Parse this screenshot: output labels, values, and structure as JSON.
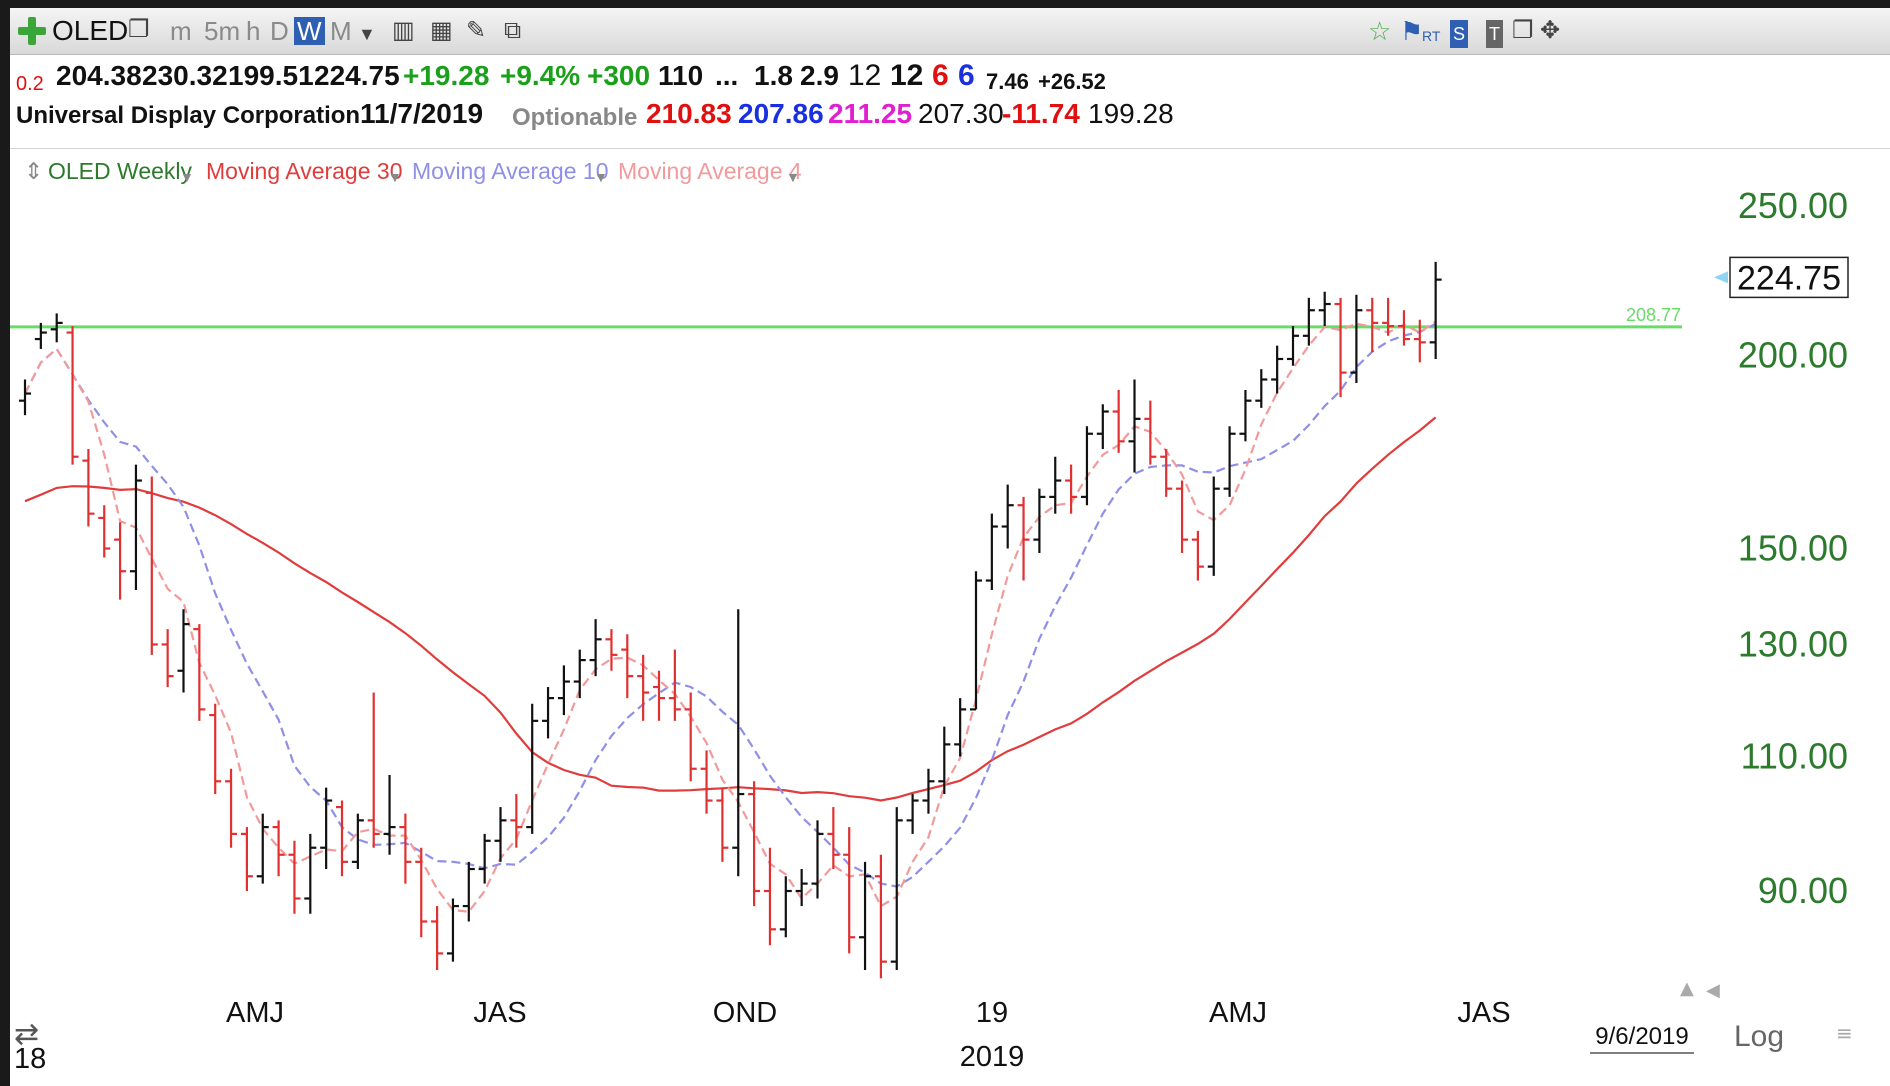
{
  "toolbar": {
    "symbol": "OLED",
    "intervals": [
      "m",
      "5m",
      "h",
      "D",
      "W",
      "M"
    ],
    "selected_interval": "W",
    "rt_label": "RT",
    "s_label": "S",
    "t_label": "T"
  },
  "quote": {
    "change_small": "0.2",
    "open": "204.38",
    "high": "230.32",
    "low": "199.51",
    "close": "224.75",
    "change": "+19.28",
    "change_pct": "+9.4%",
    "volume_change": "+300",
    "v1": "110",
    "ellipsis": "...",
    "v2": "1.8",
    "v3": "2.9",
    "v4": "12",
    "v5": "12",
    "v6": "6",
    "v7": "6",
    "v8": "7.46",
    "v9": "+26.52"
  },
  "info": {
    "company": "Universal Display Corporation",
    "date": "11/7/2019",
    "optionable": "Optionable",
    "ma30_value": "210.83",
    "ma10_value": "207.86",
    "ma4_value": "211.25",
    "value4": "207.30",
    "value5": "-11.74",
    "value6": "199.28"
  },
  "legend": {
    "main": "OLED Weekly",
    "ma30": "Moving Average 30",
    "ma10": "Moving Average 10",
    "ma4": "Moving Average 4"
  },
  "colors": {
    "up_bar": "#111111",
    "down_bar": "#e03030",
    "ma30": "#e03c3c",
    "ma10": "#8f8fe8",
    "ma4": "#f29a9a",
    "reference_line": "#66dd66",
    "axis_text": "#2c7a2c"
  },
  "chart_data": {
    "type": "ohlc",
    "scale": "log",
    "y_ticks": [
      "250.00",
      "200.00",
      "150.00",
      "130.00",
      "110.00",
      "90.00"
    ],
    "x_labels": [
      {
        "label": "AMJ"
      },
      {
        "label": "JAS"
      },
      {
        "label": "OND"
      },
      {
        "label": "19"
      },
      {
        "label": "AMJ"
      },
      {
        "label": "JAS"
      }
    ],
    "year_labels": [
      "18",
      "2019"
    ],
    "last_price": "224.75",
    "reference_line": {
      "value": 208.77,
      "label": "208.77"
    },
    "date_marker": "9/6/2019",
    "scale_label": "Log",
    "bars": [
      [
        187,
        193,
        183,
        189
      ],
      [
        205,
        210,
        202,
        207
      ],
      [
        208,
        213,
        204,
        210
      ],
      [
        207,
        209,
        170,
        172
      ],
      [
        171,
        174,
        155,
        158
      ],
      [
        157,
        160,
        148,
        150
      ],
      [
        152,
        156,
        139,
        145
      ],
      [
        145,
        170,
        141,
        166
      ],
      [
        163,
        167,
        128,
        130
      ],
      [
        130,
        133,
        122,
        124
      ],
      [
        125,
        137,
        121,
        134
      ],
      [
        133,
        134,
        116,
        118
      ],
      [
        117,
        119,
        104,
        106
      ],
      [
        106,
        108,
        96,
        98
      ],
      [
        98,
        99,
        90,
        92
      ],
      [
        92,
        101,
        91,
        99
      ],
      [
        99,
        100,
        92,
        95
      ],
      [
        95,
        97,
        87,
        89
      ],
      [
        89,
        98,
        87,
        96
      ],
      [
        96,
        105,
        93,
        103
      ],
      [
        102,
        103,
        92,
        94
      ],
      [
        94,
        101,
        93,
        100
      ],
      [
        100,
        121,
        96,
        98
      ],
      [
        98,
        107,
        95,
        99
      ],
      [
        99,
        101,
        91,
        94
      ],
      [
        94,
        96,
        84,
        86
      ],
      [
        86,
        88,
        80,
        82
      ],
      [
        82,
        89,
        81,
        88
      ],
      [
        88,
        94,
        86,
        93
      ],
      [
        93,
        98,
        91,
        97
      ],
      [
        97,
        102,
        94,
        100
      ],
      [
        100,
        104,
        96,
        99
      ],
      [
        99,
        119,
        98,
        116
      ],
      [
        116,
        122,
        113,
        120
      ],
      [
        120,
        126,
        117,
        123
      ],
      [
        123,
        129,
        120,
        127
      ],
      [
        127,
        135,
        124,
        131
      ],
      [
        131,
        133,
        125,
        128
      ],
      [
        129,
        132,
        120,
        124
      ],
      [
        124,
        128,
        116,
        121
      ],
      [
        122,
        125,
        116,
        120
      ],
      [
        120,
        129,
        116,
        118
      ],
      [
        118,
        121,
        106,
        108
      ],
      [
        108,
        111,
        101,
        103
      ],
      [
        103,
        105,
        94,
        96
      ],
      [
        96,
        137,
        92,
        104
      ],
      [
        104,
        106,
        88,
        90
      ],
      [
        90,
        96,
        83,
        85
      ],
      [
        85,
        92,
        84,
        90
      ],
      [
        90,
        93,
        88,
        91
      ],
      [
        91,
        100,
        89,
        98
      ],
      [
        98,
        102,
        93,
        95
      ],
      [
        95,
        99,
        82,
        84
      ],
      [
        84,
        94,
        80,
        92
      ],
      [
        92,
        95,
        79,
        81
      ],
      [
        81,
        102,
        80,
        100
      ],
      [
        100,
        104,
        98,
        103
      ],
      [
        103,
        108,
        101,
        106
      ],
      [
        106,
        115,
        104,
        112
      ],
      [
        112,
        120,
        110,
        118
      ],
      [
        118,
        145,
        118,
        143
      ],
      [
        143,
        158,
        141,
        155
      ],
      [
        155,
        165,
        150,
        160
      ],
      [
        160,
        162,
        143,
        152
      ],
      [
        152,
        164,
        149,
        162
      ],
      [
        162,
        172,
        158,
        166
      ],
      [
        166,
        170,
        158,
        162
      ],
      [
        162,
        180,
        160,
        178
      ],
      [
        178,
        186,
        174,
        184
      ],
      [
        184,
        190,
        173,
        176
      ],
      [
        176,
        193,
        168,
        182
      ],
      [
        182,
        187,
        170,
        172
      ],
      [
        172,
        174,
        162,
        164
      ],
      [
        164,
        166,
        149,
        152
      ],
      [
        152,
        154,
        143,
        146
      ],
      [
        146,
        167,
        144,
        164
      ],
      [
        164,
        180,
        162,
        178
      ],
      [
        178,
        190,
        176,
        187
      ],
      [
        187,
        196,
        185,
        193
      ],
      [
        193,
        203,
        189,
        199
      ],
      [
        199,
        209,
        197,
        206
      ],
      [
        206,
        218,
        203,
        214
      ],
      [
        214,
        220,
        209,
        216
      ],
      [
        216,
        218,
        188,
        195
      ],
      [
        195,
        219,
        192,
        214
      ],
      [
        214,
        218,
        201,
        210
      ],
      [
        210,
        218,
        206,
        209
      ],
      [
        209,
        214,
        203,
        205
      ],
      [
        205,
        211,
        198,
        204
      ],
      [
        204,
        230,
        199,
        224
      ]
    ]
  }
}
